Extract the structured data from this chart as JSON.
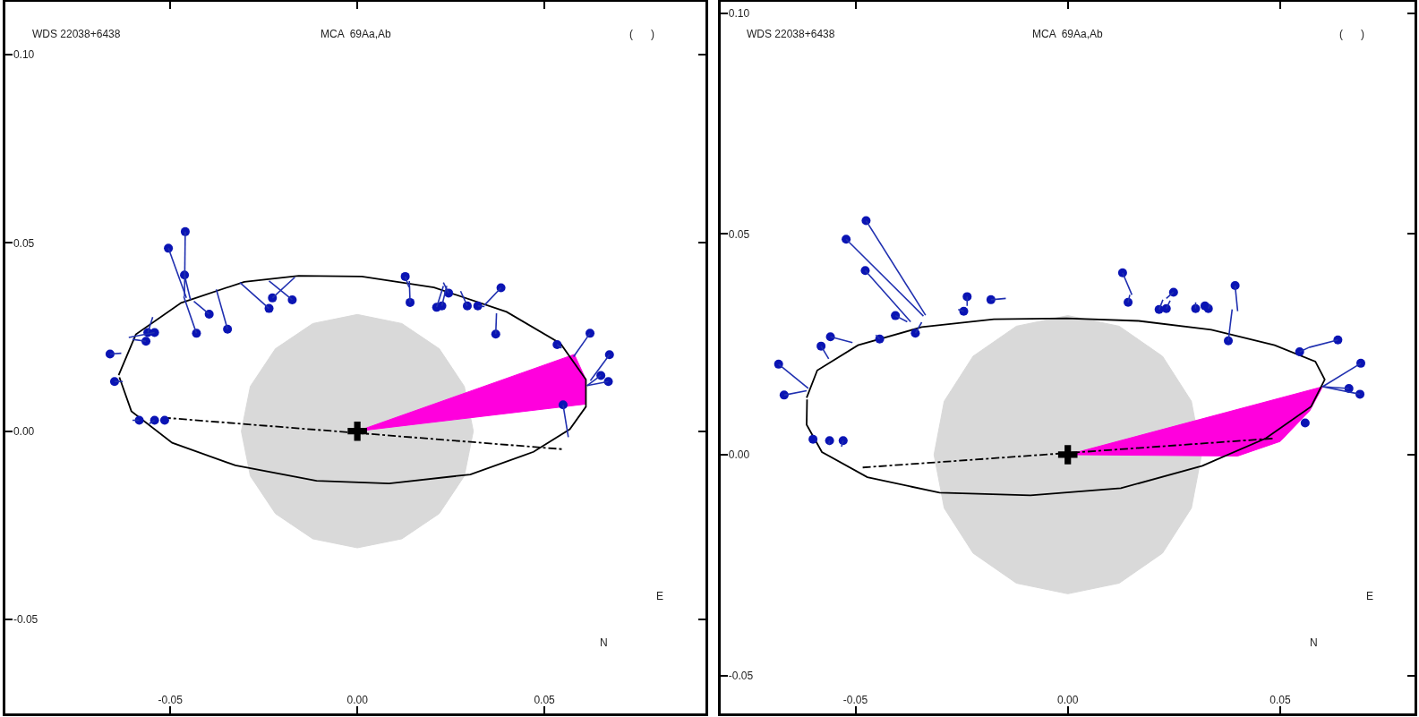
{
  "chart_data": [
    {
      "type": "scatter",
      "xlim": [
        -0.094,
        0.093
      ],
      "ylim": [
        -0.075,
        0.114
      ],
      "xticks": [
        {
          "value": -0.05,
          "label": "-0.05"
        },
        {
          "value": 0,
          "label": "0.00"
        },
        {
          "value": 0.05,
          "label": "0.05"
        }
      ],
      "yticks": [
        {
          "value": -0.05,
          "label": "-0.05"
        },
        {
          "value": 0,
          "label": "0.00"
        },
        {
          "value": 0.05,
          "label": "0.05"
        },
        {
          "value": 0.1,
          "label": "0.10"
        }
      ],
      "annotations": [
        "WDS 22038+6438",
        "MCA  69Aa,Ab",
        "(      )",
        "N",
        "E"
      ],
      "series": [
        {
          "type": "area",
          "color": "#d9d9d9",
          "x": [
            0.031,
            0.0286,
            0.0219,
            0.0119,
            0,
            -0.0119,
            -0.0219,
            -0.0286,
            -0.031,
            -0.0286,
            -0.0219,
            -0.0119,
            0,
            0.0119,
            0.0219,
            0.0286,
            0.031
          ],
          "values": [
            0,
            0.0119,
            0.0219,
            0.0286,
            0.031,
            0.0286,
            0.0219,
            0.0119,
            0,
            -0.0119,
            -0.0219,
            -0.0286,
            -0.031,
            -0.0286,
            -0.0219,
            -0.0119,
            0
          ]
        },
        {
          "type": "area",
          "color": "#ff00dd",
          "x": [
            0,
            0.058,
            0.0611,
            0.0611,
            0
          ],
          "values": [
            0,
            0.0204,
            0.0137,
            0.0072,
            0
          ]
        },
        {
          "type": "line",
          "color": "#000000",
          "line_style": "dashdot",
          "x": [
            -0.052,
            0.055
          ],
          "values": [
            0.0036,
            -0.0048
          ]
        },
        {
          "type": "line",
          "color": "#000000",
          "x": [
            -0.0638,
            -0.0592,
            -0.0471,
            -0.0302,
            -0.0157,
            0.0012,
            0.0205,
            0.0399,
            0.0543,
            0.0611,
            0.0611,
            0.0568,
            0.0471,
            0.0302,
            0.0085,
            -0.0109,
            -0.0326,
            -0.0495,
            -0.0604,
            -0.0636
          ],
          "values": [
            0.0149,
            0.0257,
            0.0341,
            0.0397,
            0.0413,
            0.0411,
            0.0382,
            0.0317,
            0.0233,
            0.0137,
            0.0065,
            0.0005,
            -0.0055,
            -0.0115,
            -0.0139,
            -0.0132,
            -0.0091,
            -0.0031,
            0.0053,
            0.0143
          ]
        },
        {
          "color": "#0a14b4",
          "marker": "circle",
          "x": [
            -0.046,
            -0.0505,
            -0.0462,
            -0.0396,
            -0.043,
            -0.0347,
            -0.0236,
            -0.0227,
            -0.0174,
            -0.056,
            -0.0542,
            -0.0565,
            -0.0661,
            -0.0649,
            -0.0583,
            -0.0542,
            -0.0515,
            0.0128,
            0.0141,
            0.0244,
            0.0212,
            0.0226,
            0.0294,
            0.0322,
            0.0384,
            0.037,
            0.0534,
            0.0622,
            0.0674,
            0.0651,
            0.0671,
            0.055
          ],
          "values": [
            0.053,
            0.0486,
            0.0415,
            0.0311,
            0.026,
            0.0271,
            0.0326,
            0.0354,
            0.0349,
            0.0262,
            0.0262,
            0.0239,
            0.0205,
            0.0132,
            0.0029,
            0.0029,
            0.0029,
            0.0411,
            0.0342,
            0.0367,
            0.0329,
            0.0333,
            0.0333,
            0.0333,
            0.0381,
            0.0258,
            0.023,
            0.026,
            0.0203,
            0.0148,
            0.0132,
            0.007
          ]
        },
        {
          "type": "line",
          "color": "#2030b0",
          "x": [
            -0.046,
            -0.0462,
            null,
            -0.0505,
            -0.0457,
            null,
            -0.0462,
            -0.0446,
            null,
            -0.0396,
            -0.0437,
            null,
            -0.043,
            -0.0464,
            null,
            -0.0347,
            -0.0377,
            null,
            -0.0236,
            -0.0314,
            null,
            -0.0227,
            -0.0167,
            null,
            -0.0174,
            -0.0236,
            null,
            -0.056,
            -0.0547,
            null,
            -0.0542,
            -0.0611,
            null,
            -0.0565,
            -0.0601,
            null,
            -0.0661,
            -0.0631,
            null,
            -0.0649,
            -0.0627,
            null,
            -0.0583,
            -0.0601,
            null,
            -0.0542,
            -0.0556,
            null,
            0.0128,
            0.0138,
            null,
            0.0141,
            0.0139,
            null,
            0.0244,
            0.023,
            null,
            0.0212,
            0.023,
            null,
            0.0226,
            0.0239,
            null,
            0.0294,
            0.0276,
            null,
            0.0322,
            0.034,
            null,
            0.0384,
            0.034,
            null,
            0.037,
            0.0372,
            null,
            0.0534,
            0.0546,
            null,
            0.0622,
            0.0578,
            null,
            0.0674,
            0.0623,
            null,
            0.0651,
            0.0614,
            null,
            0.0671,
            0.0614,
            null,
            0.055,
            0.0564
          ],
          "values": [
            0.053,
            0.0358,
            null,
            0.0486,
            0.0354,
            null,
            0.0415,
            0.0349,
            null,
            0.0311,
            0.0345,
            null,
            0.026,
            0.0358,
            null,
            0.0271,
            0.0377,
            null,
            0.0326,
            0.0395,
            null,
            0.0354,
            0.0409,
            null,
            0.0349,
            0.0399,
            null,
            0.0262,
            0.0303,
            null,
            0.0262,
            0.0249,
            null,
            0.0239,
            0.0244,
            null,
            0.0205,
            0.0207,
            null,
            0.0132,
            0.0132,
            null,
            0.0029,
            0.0029,
            null,
            0.0029,
            0.002,
            null,
            0.0411,
            0.0383,
            null,
            0.0342,
            0.0399,
            null,
            0.0367,
            0.0395,
            null,
            0.0329,
            0.0386,
            null,
            0.0333,
            0.0386,
            null,
            0.0333,
            0.0372,
            null,
            0.0333,
            0.0331,
            null,
            0.0381,
            0.0335,
            null,
            0.0258,
            0.0313,
            null,
            0.023,
            0.0221,
            null,
            0.026,
            0.0198,
            null,
            0.0203,
            0.0134,
            null,
            0.0148,
            0.0121,
            null,
            0.0132,
            0.0121,
            null,
            0.007,
            -0.0016
          ]
        },
        {
          "color": "#000000",
          "marker": "cross",
          "x": [
            0
          ],
          "values": [
            0
          ]
        }
      ]
    },
    {
      "type": "scatter",
      "xlim": [
        -0.0817,
        0.0817
      ],
      "ylim": [
        -0.0586,
        0.1025
      ],
      "xticks": [
        {
          "value": -0.05,
          "label": "-0.05"
        },
        {
          "value": 0,
          "label": "0.00"
        },
        {
          "value": 0.05,
          "label": "0.05"
        }
      ],
      "yticks": [
        {
          "value": -0.05,
          "label": "-0.05"
        },
        {
          "value": 0,
          "label": "0.00"
        },
        {
          "value": 0.05,
          "label": "0.05"
        },
        {
          "value": 0.1,
          "label": "0.10"
        }
      ],
      "annotations": [
        "WDS 22038+6438",
        "MCA  69Aa,Ab",
        "(      )",
        "N",
        "E"
      ],
      "series": [
        {
          "type": "area",
          "color": "#d9d9d9",
          "x": [
            0.0315,
            0.0291,
            0.0223,
            0.0121,
            0,
            -0.0121,
            -0.0223,
            -0.0291,
            -0.0315,
            -0.0291,
            -0.0223,
            -0.0121,
            0,
            0.0121,
            0.0223,
            0.0291,
            0.0315
          ],
          "values": [
            0,
            0.0121,
            0.0223,
            0.0291,
            0.0315,
            0.0291,
            0.0223,
            0.0121,
            0,
            -0.0121,
            -0.0223,
            -0.0291,
            -0.0315,
            -0.0291,
            -0.0223,
            -0.0121,
            0
          ]
        },
        {
          "type": "area",
          "color": "#ff00dd",
          "x": [
            0,
            0.06,
            0.057,
            0.05,
            0.04,
            0
          ],
          "values": [
            0,
            0.0154,
            0.01,
            0.003,
            -0.0003,
            0
          ]
        },
        {
          "type": "line",
          "color": "#000000",
          "line_style": "dashdot",
          "x": [
            -0.0483,
            0.0487
          ],
          "values": [
            -0.0029,
            0.0037
          ]
        },
        {
          "type": "line",
          "color": "#000000",
          "x": [
            -0.0615,
            -0.059,
            -0.0494,
            -0.0344,
            -0.0174,
            -0.0003,
            0.0167,
            0.0338,
            0.0487,
            0.0583,
            0.0605,
            0.0573,
            0.0466,
            0.0317,
            0.0125,
            -0.0088,
            -0.0302,
            -0.0472,
            -0.0579,
            -0.0615,
            -0.0614
          ],
          "values": [
            0.0129,
            0.0191,
            0.0248,
            0.0289,
            0.0307,
            0.0309,
            0.0303,
            0.0283,
            0.0248,
            0.0211,
            0.017,
            0.0109,
            0.0037,
            -0.0025,
            -0.0076,
            -0.0092,
            -0.0086,
            -0.0051,
            0.0006,
            0.0068,
            0.0125
          ]
        },
        {
          "color": "#0a14b4",
          "marker": "circle",
          "x": [
            -0.0475,
            -0.0522,
            -0.0477,
            -0.0406,
            -0.0359,
            -0.0443,
            -0.0559,
            -0.0581,
            -0.0237,
            -0.0181,
            -0.0245,
            0.0129,
            0.0142,
            0.0249,
            0.0215,
            0.0232,
            0.0301,
            0.0323,
            0.0331,
            0.0394,
            0.0378,
            0.0546,
            0.0636,
            0.0559,
            -0.06,
            -0.0561,
            -0.0529,
            -0.0681,
            -0.0668,
            0.069,
            0.0662,
            0.0688
          ],
          "values": [
            0.053,
            0.0488,
            0.0417,
            0.0315,
            0.0275,
            0.0262,
            0.0267,
            0.0246,
            0.0358,
            0.0351,
            0.0325,
            0.0412,
            0.0345,
            0.0368,
            0.0329,
            0.0331,
            0.0331,
            0.0337,
            0.0331,
            0.0383,
            0.0258,
            0.0233,
            0.026,
            0.0072,
            0.0035,
            0.0032,
            0.0032,
            0.0205,
            0.0135,
            0.0207,
            0.015,
            0.0137
          ]
        },
        {
          "type": "line",
          "color": "#2030b0",
          "x": [
            -0.0475,
            -0.0335,
            null,
            -0.0522,
            -0.034,
            null,
            -0.0477,
            -0.037,
            null,
            -0.0406,
            -0.0378,
            null,
            -0.0359,
            -0.0344,
            null,
            -0.0443,
            -0.0452,
            null,
            -0.0559,
            -0.0507,
            null,
            -0.0581,
            -0.0563,
            null,
            -0.0237,
            -0.0237,
            null,
            -0.0181,
            -0.0146,
            null,
            -0.0245,
            -0.0258,
            null,
            0.0129,
            0.0151,
            null,
            0.0142,
            0.0146,
            null,
            0.0249,
            0.0232,
            null,
            0.0215,
            0.0224,
            null,
            0.0232,
            0.0241,
            null,
            0.0301,
            0.0301,
            null,
            0.0331,
            0.0335,
            null,
            0.0394,
            0.04,
            null,
            0.0378,
            0.0387,
            null,
            0.0546,
            0.0568,
            null,
            0.0636,
            0.0568,
            null,
            -0.0561,
            -0.0563,
            null,
            -0.0529,
            -0.0533,
            null,
            -0.0681,
            -0.0611,
            null,
            -0.0668,
            -0.0615,
            null,
            0.069,
            0.06,
            null,
            0.0662,
            0.06,
            null,
            0.0688,
            0.06
          ],
          "values": [
            0.053,
            0.0316,
            null,
            0.0488,
            0.0314,
            null,
            0.0417,
            0.0301,
            null,
            0.0315,
            0.0301,
            null,
            0.0275,
            0.03,
            null,
            0.0262,
            0.0271,
            null,
            0.0267,
            0.0254,
            null,
            0.0246,
            0.0217,
            null,
            0.0358,
            0.0337,
            null,
            0.0351,
            0.0354,
            null,
            0.0325,
            0.0329,
            null,
            0.0412,
            0.0362,
            null,
            0.0345,
            0.0362,
            null,
            0.0368,
            0.0354,
            null,
            0.0329,
            0.0351,
            null,
            0.0331,
            0.0349,
            null,
            0.0331,
            0.0345,
            null,
            0.0331,
            0.0341,
            null,
            0.0383,
            0.0325,
            null,
            0.0258,
            0.0329,
            null,
            0.0233,
            0.0243,
            null,
            0.026,
            0.0243,
            null,
            0.0032,
            0.0022,
            null,
            0.0032,
            0.0018,
            null,
            0.0205,
            0.015,
            null,
            0.0135,
            0.0145,
            null,
            0.0207,
            0.0154,
            null,
            0.015,
            0.0154,
            null,
            0.0137,
            0.0154
          ]
        },
        {
          "color": "#000000",
          "marker": "cross",
          "x": [
            0
          ],
          "values": [
            0
          ]
        }
      ]
    }
  ]
}
